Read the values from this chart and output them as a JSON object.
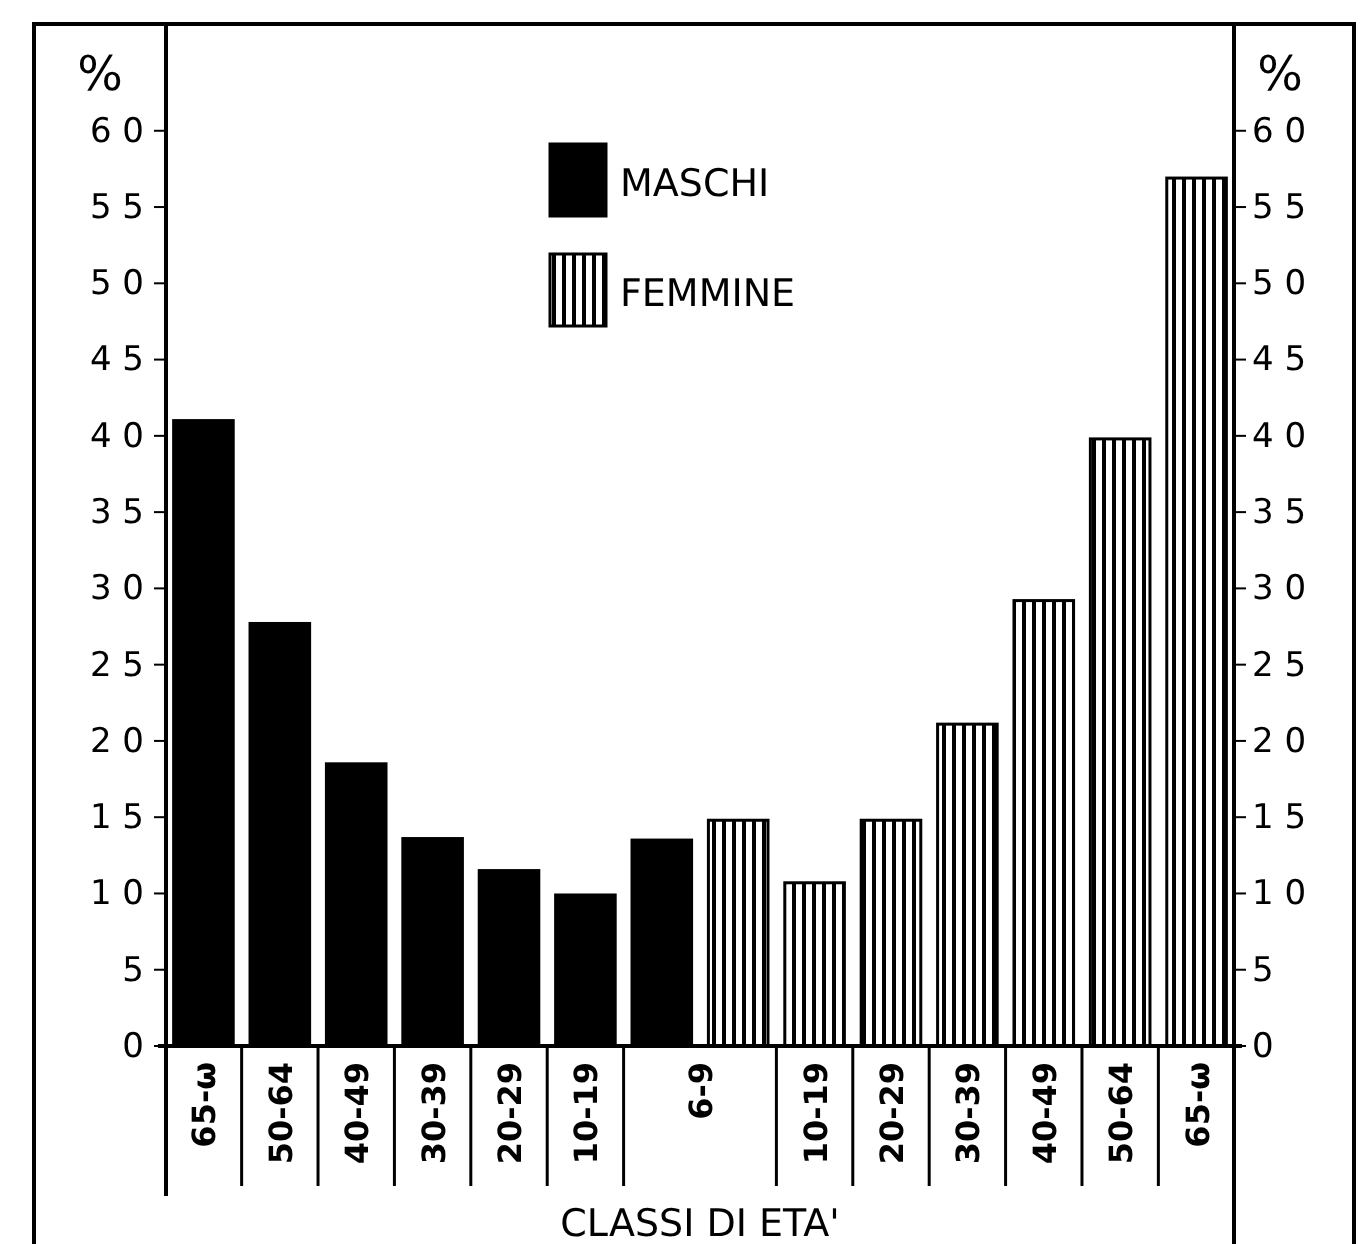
{
  "chart_data": {
    "type": "bar",
    "xlabel": "CLASSI DI ETA'",
    "ylabel": "%",
    "y2label": "%",
    "categories": [
      "65-ω",
      "50-64",
      "40-49",
      "30-39",
      "20-29",
      "10-19",
      "6-9",
      "10-19",
      "20-29",
      "30-39",
      "40-49",
      "50-64",
      "65-ω"
    ],
    "series": [
      {
        "name": "MASCHI",
        "color": "#000000",
        "values": [
          41,
          27.7,
          18.5,
          13.6,
          11.5,
          9.9,
          13.5,
          null,
          null,
          null,
          null,
          null,
          null
        ]
      },
      {
        "name": "FEMMINE",
        "color": "#000000",
        "values": [
          null,
          null,
          null,
          null,
          null,
          null,
          14.8,
          10.7,
          14.8,
          21.1,
          29.2,
          39.8,
          56.9
        ]
      }
    ],
    "ylim": [
      0,
      67
    ],
    "yticks": [
      0,
      5,
      10,
      15,
      20,
      25,
      30,
      35,
      40,
      45,
      50,
      55,
      60
    ],
    "y2lim": [
      0,
      67
    ],
    "y2ticks": [
      0,
      5,
      10,
      15,
      20,
      25,
      30,
      35,
      40,
      45,
      50,
      55,
      60
    ],
    "legend": "top",
    "grid": false
  }
}
